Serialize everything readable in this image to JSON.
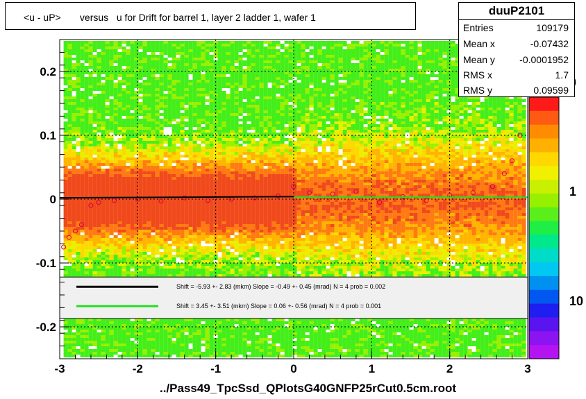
{
  "title": "<u - uP>       versus   u for Drift for barrel 1, layer 2 ladder 1, wafer 1",
  "stats": {
    "name": "duuP2101",
    "rows": [
      {
        "key": "Entries",
        "value": "109179"
      },
      {
        "key": "Mean x",
        "value": "-0.07432"
      },
      {
        "key": "Mean y",
        "value": "-0.0001952"
      },
      {
        "key": "RMS x",
        "value": "1.7"
      },
      {
        "key": "RMS y",
        "value": "0.09599"
      }
    ]
  },
  "xlabel": "../Pass49_TpcSsd_QPlotsG40GNFP25rCut0.5cm.root",
  "chart_data": {
    "type": "heatmap",
    "title": "<u - uP>       versus   u for Drift for barrel 1, layer 2 ladder 1, wafer 1",
    "xlabel": "../Pass49_TpcSsd_QPlotsG40GNFP25rCut0.5cm.root",
    "ylabel": "",
    "xlim": [
      -3,
      3
    ],
    "ylim": [
      -0.25,
      0.25
    ],
    "x_ticks": [
      -3,
      -2,
      -1,
      0,
      1,
      2,
      3
    ],
    "y_ticks": [
      -0.2,
      -0.1,
      0,
      0.1,
      0.2
    ],
    "colorbar_labels": [
      "0",
      "1",
      "10"
    ],
    "grid": true,
    "profile_points": [
      {
        "x": -2.95,
        "y": -0.075
      },
      {
        "x": -2.88,
        "y": -0.06
      },
      {
        "x": -2.8,
        "y": -0.05
      },
      {
        "x": -2.72,
        "y": -0.04
      },
      {
        "x": -2.6,
        "y": -0.01
      },
      {
        "x": -2.5,
        "y": -0.005
      },
      {
        "x": -2.3,
        "y": -0.002
      },
      {
        "x": -2.0,
        "y": 0.0
      },
      {
        "x": -1.7,
        "y": -0.003
      },
      {
        "x": -1.4,
        "y": 0.002
      },
      {
        "x": -1.1,
        "y": -0.002
      },
      {
        "x": -0.8,
        "y": 0.0
      },
      {
        "x": -0.5,
        "y": 0.002
      },
      {
        "x": -0.2,
        "y": 0.005
      },
      {
        "x": 0.0,
        "y": 0.02
      },
      {
        "x": 0.2,
        "y": 0.01
      },
      {
        "x": 0.5,
        "y": 0.008
      },
      {
        "x": 0.8,
        "y": 0.012
      },
      {
        "x": 1.1,
        "y": -0.005
      },
      {
        "x": 1.4,
        "y": 0.004
      },
      {
        "x": 1.7,
        "y": -0.002
      },
      {
        "x": 2.0,
        "y": 0.006
      },
      {
        "x": 2.3,
        "y": 0.01
      },
      {
        "x": 2.55,
        "y": 0.02
      },
      {
        "x": 2.7,
        "y": 0.04
      },
      {
        "x": 2.8,
        "y": 0.06
      },
      {
        "x": 2.9,
        "y": 0.1
      }
    ],
    "fits": [
      {
        "color": "#000000",
        "text": "Shift =    -5.93 +- 2.83 (mkm) Slope =    -0.49 +- 0.45 (mrad)  N = 4 prob = 0.002",
        "range": [
          -3,
          0
        ],
        "y_left": 0.002,
        "y_right": 0.004
      },
      {
        "color": "#22dd22",
        "text": "Shift =    3.45 +- 3.51 (mkm) Slope =    0.06 +- 0.56 (mrad)  N = 4 prob = 0.001",
        "range": [
          0,
          3
        ],
        "y_left": 0.003,
        "y_right": 0.003
      }
    ]
  }
}
